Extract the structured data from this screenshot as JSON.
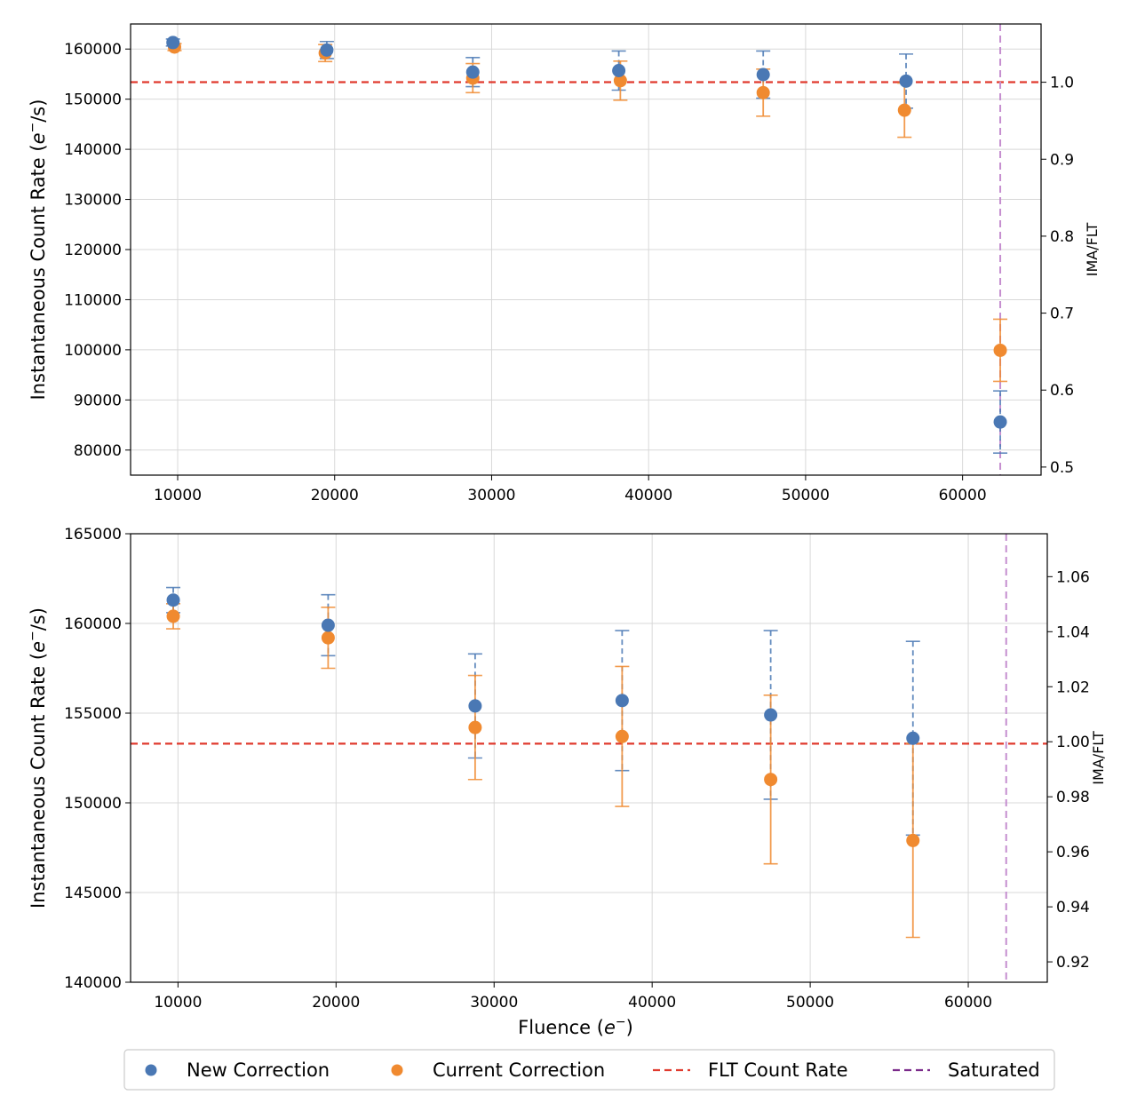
{
  "chart_data": [
    {
      "type": "scatter",
      "panel": "top",
      "title": "",
      "xlabel": "",
      "ylabel": "Instantaneous Count Rate ($e^{-}$/s)",
      "ylabel_parts": {
        "main": "Instantaneous Count Rate (",
        "e": "e",
        "sup": "−",
        "tail": "/s)"
      },
      "y2label": "IMA/FLT",
      "xlim": [
        7000,
        65000
      ],
      "ylim": [
        75000,
        165000
      ],
      "y2lim": [
        0.4895,
        1.0757
      ],
      "xticks": [
        10000,
        20000,
        30000,
        40000,
        50000,
        60000
      ],
      "xtick_labels": [
        "10000",
        "20000",
        "30000",
        "40000",
        "50000",
        "60000"
      ],
      "yticks": [
        80000,
        90000,
        100000,
        110000,
        120000,
        130000,
        140000,
        150000,
        160000
      ],
      "ytick_labels": [
        "80000",
        "90000",
        "100000",
        "110000",
        "120000",
        "130000",
        "140000",
        "150000",
        "160000"
      ],
      "y2ticks": [
        0.5,
        0.6,
        0.7,
        0.8,
        0.9,
        1.0
      ],
      "y2tick_labels": [
        "0.5",
        "0.6",
        "0.7",
        "0.8",
        "0.9",
        "1.0"
      ],
      "grid": true,
      "flt_rate": 153400,
      "saturated_x": 62400,
      "series": [
        {
          "name": "New Correction",
          "color": "#4a78b4",
          "x": [
            9700,
            19500,
            28800,
            38100,
            47300,
            56400,
            62400
          ],
          "y": [
            161300,
            159800,
            155400,
            155700,
            154900,
            153600,
            85600
          ],
          "yerr": [
            700,
            1700,
            2900,
            3900,
            4700,
            5400,
            6200
          ]
        },
        {
          "name": "Current Correction",
          "color": "#f08a30",
          "x": [
            9800,
            19400,
            28800,
            38200,
            47300,
            56300,
            62400
          ],
          "y": [
            160400,
            159200,
            154200,
            153700,
            151300,
            147800,
            99900
          ],
          "yerr": [
            700,
            1700,
            2900,
            3900,
            4700,
            5400,
            6200
          ]
        }
      ]
    },
    {
      "type": "scatter",
      "panel": "bottom",
      "title": "",
      "xlabel": "Fluence ($e^-$)",
      "xlabel_parts": {
        "main": "Fluence (",
        "e": "e",
        "sup": "−",
        "tail": ")"
      },
      "ylabel": "Instantaneous Count Rate ($e^{-}$/s)",
      "ylabel_parts": {
        "main": "Instantaneous Count Rate (",
        "e": "e",
        "sup": "−",
        "tail": "/s)"
      },
      "y2label": "IMA/FLT",
      "xlim": [
        7000,
        65000
      ],
      "ylim": [
        140000,
        165000
      ],
      "y2lim": [
        0.9126,
        1.0756
      ],
      "xticks": [
        10000,
        20000,
        30000,
        40000,
        50000,
        60000
      ],
      "xtick_labels": [
        "10000",
        "20000",
        "30000",
        "40000",
        "50000",
        "60000"
      ],
      "yticks": [
        140000,
        145000,
        150000,
        155000,
        160000,
        165000
      ],
      "ytick_labels": [
        "140000",
        "145000",
        "150000",
        "155000",
        "160000",
        "165000"
      ],
      "y2ticks": [
        0.92,
        0.94,
        0.96,
        0.98,
        1.0,
        1.02,
        1.04,
        1.06
      ],
      "y2tick_labels": [
        "0.92",
        "0.94",
        "0.96",
        "0.98",
        "1.00",
        "1.02",
        "1.04",
        "1.06"
      ],
      "grid": true,
      "flt_rate": 153300,
      "saturated_x": 62400,
      "series": [
        {
          "name": "New Correction",
          "color": "#4a78b4",
          "x": [
            9700,
            19500,
            28800,
            38100,
            47500,
            56500
          ],
          "y": [
            161300,
            159900,
            155400,
            155700,
            154900,
            153600
          ],
          "yerr": [
            700,
            1700,
            2900,
            3900,
            4700,
            5400
          ]
        },
        {
          "name": "Current Correction",
          "color": "#f08a30",
          "x": [
            9700,
            19500,
            28800,
            38100,
            47500,
            56500
          ],
          "y": [
            160400,
            159200,
            154200,
            153700,
            151300,
            147900
          ],
          "yerr": [
            700,
            1700,
            2900,
            3900,
            4700,
            5400
          ]
        }
      ]
    }
  ],
  "legend": {
    "placement": "bottom-center",
    "entries": [
      {
        "label": "New Correction",
        "kind": "marker",
        "color": "#4a78b4"
      },
      {
        "label": "Current Correction",
        "kind": "marker",
        "color": "#f08a30"
      },
      {
        "label": "FLT Count Rate",
        "kind": "dashed-line",
        "color": "#e03a2e"
      },
      {
        "label": "Saturated",
        "kind": "dashed-line",
        "color": "#7a2a8a"
      }
    ]
  },
  "colors": {
    "flt_line": "#e03a2e",
    "saturated_line": "#c58ed0",
    "grid": "#d8d8d8"
  }
}
